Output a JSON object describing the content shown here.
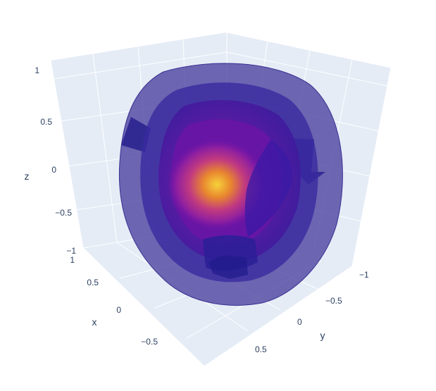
{
  "chart_data": {
    "type": "isosurface",
    "title": "",
    "colorscale": "plasma",
    "axes": {
      "x": {
        "label": "x",
        "range": [
          -1,
          1
        ],
        "ticks": [
          "−0.5",
          "0",
          "0.5",
          "1"
        ]
      },
      "y": {
        "label": "y",
        "range": [
          -1,
          1
        ],
        "ticks": [
          "0.5",
          "0",
          "−0.5",
          "−1"
        ]
      },
      "z": {
        "label": "z",
        "range": [
          -1,
          1
        ],
        "ticks": [
          "−1",
          "−0.5",
          "0",
          "0.5",
          "1"
        ]
      }
    },
    "grid": true,
    "background_color": "#e5ecf6",
    "surface_colors": [
      "#2d1b9a",
      "#3b1aa8",
      "#5b0fa8",
      "#8e1fa0",
      "#c13a80",
      "#f2b12a"
    ]
  }
}
